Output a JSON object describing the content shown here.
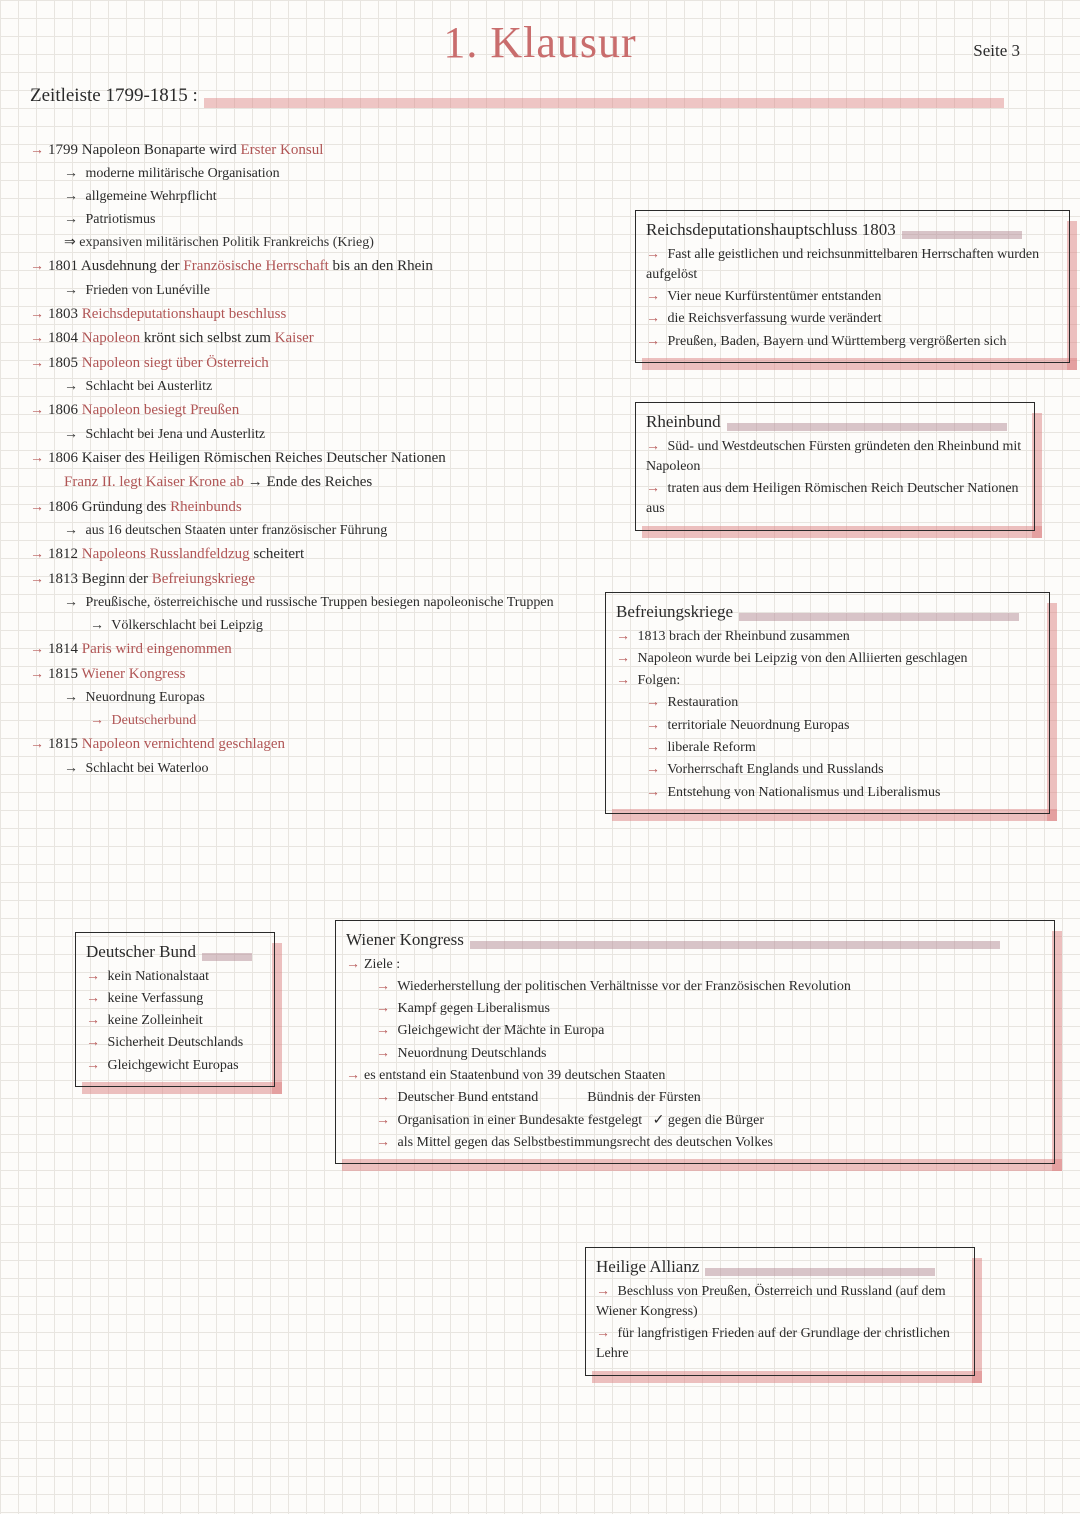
{
  "page": {
    "title": "1. Klausur",
    "pagenum": "Seite 3"
  },
  "headers": {
    "timeline": "Zeitleiste 1799-1815 :"
  },
  "colors": {
    "accent": "#b85a5a",
    "highlight": "rgba(220,130,130,0.45)",
    "text": "#2a2a2a"
  },
  "timeline": [
    {
      "y": "1799",
      "t": "Napoleon Bonaparte wird",
      "r": "Erster Konsul",
      "subs": [
        "moderne militärische Organisation",
        "allgemeine Wehrpflicht",
        "Patriotismus",
        "⇒ expansiven militärischen Politik Frankreichs (Krieg)"
      ]
    },
    {
      "y": "1801",
      "t": "Ausdehnung der",
      "r": "Französische Herrschaft",
      "t2": "bis an den Rhein",
      "subs": [
        "Frieden von Lunéville"
      ]
    },
    {
      "y": "1803",
      "r": "Reichsdeputationshaupt beschluss"
    },
    {
      "y": "1804",
      "r": "Napoleon",
      "t": "krönt sich selbst zum",
      "r2": "Kaiser"
    },
    {
      "y": "1805",
      "r": "Napoleon",
      "r2": "siegt über Österreich",
      "subs": [
        "Schlacht bei Austerlitz"
      ]
    },
    {
      "y": "1806",
      "r": "Napoleon",
      "r2": "besiegt Preußen",
      "subs": [
        "Schlacht bei Jena und Austerlitz"
      ]
    },
    {
      "y": "1806",
      "t": "Kaiser des Heiligen Römischen Reiches Deutscher Nationen",
      "line2r": "Franz II. legt Kaiser Krone ab",
      "line2t": "→ Ende des Reiches"
    },
    {
      "y": "1806",
      "t": "Gründung des",
      "r": "Rheinbunds",
      "subs": [
        "aus 16 deutschen Staaten unter französischer Führung"
      ]
    },
    {
      "y": "1812",
      "r": "Napoleons",
      "r2": "Russlandfeldzug",
      "t": "scheitert"
    },
    {
      "y": "1813",
      "t": "Beginn der",
      "r": "Befreiungskriege",
      "subs": [
        "Preußische, österreichische und russische Truppen besiegen napoleonische Truppen"
      ],
      "subs2": [
        "Völkerschlacht bei Leipzig"
      ]
    },
    {
      "y": "1814",
      "r": "Paris wird eingenommen"
    },
    {
      "y": "1815",
      "r": "Wiener Kongress",
      "subs": [
        "Neuordnung Europas"
      ],
      "subs2r": [
        "Deutscherbund"
      ]
    },
    {
      "y": "1815",
      "r": "Napoleon",
      "t": "wird",
      "r2": "vernichtend geschlagen",
      "subs": [
        "Schlacht bei Waterloo"
      ]
    }
  ],
  "box_reichs": {
    "title": "Reichsdeputationshauptschluss 1803",
    "items": [
      "Fast alle geistlichen und reichsunmittelbaren Herrschaften wurden aufgelöst",
      "Vier neue Kurfürstentümer entstanden",
      "die Reichsverfassung wurde verändert",
      "Preußen, Baden, Bayern und Württemberg vergrößerten sich"
    ]
  },
  "box_rhein": {
    "title": "Rheinbund",
    "items": [
      "Süd- und Westdeutschen Fürsten gründeten den Rheinbund mit Napoleon",
      "traten aus dem Heiligen Römischen Reich Deutscher Nationen aus"
    ]
  },
  "box_befrei": {
    "title": "Befreiungskriege",
    "items": [
      "1813 brach der Rheinbund zusammen",
      "Napoleon wurde bei Leipzig von den Alliierten geschlagen",
      "Folgen:"
    ],
    "folgen": [
      "Restauration",
      "territoriale Neuordnung Europas",
      "liberale Reform",
      "Vorherrschaft Englands und Russlands",
      "Entstehung von Nationalismus und Liberalismus"
    ]
  },
  "box_db": {
    "title": "Deutscher Bund",
    "items": [
      "kein Nationalstaat",
      "keine Verfassung",
      "keine Zolleinheit",
      "Sicherheit Deutschlands",
      "Gleichgewicht Europas"
    ]
  },
  "box_wk": {
    "title": "Wiener Kongress",
    "ziele_label": "Ziele :",
    "ziele": [
      "Wiederherstellung der politischen Verhältnisse vor der Französischen Revolution",
      "Kampf gegen Liberalismus",
      "Gleichgewicht der Mächte in Europa",
      "Neuordnung Deutschlands"
    ],
    "main2": "es entstand ein Staatenbund von 39 deutschen Staaten",
    "sub2": [
      "Deutscher Bund entstand              Bündnis der Fürsten",
      "Organisation in einer Bundesakte festgelegt   ✓ gegen die Bürger",
      "als Mittel gegen das Selbstbestimmungsrecht des deutschen Volkes"
    ]
  },
  "box_ha": {
    "title": "Heilige Allianz",
    "items": [
      "Beschluss von Preußen, Österreich und Russland (auf dem Wiener Kongress)",
      "für langfristigen Frieden auf der Grundlage der christlichen Lehre"
    ]
  }
}
